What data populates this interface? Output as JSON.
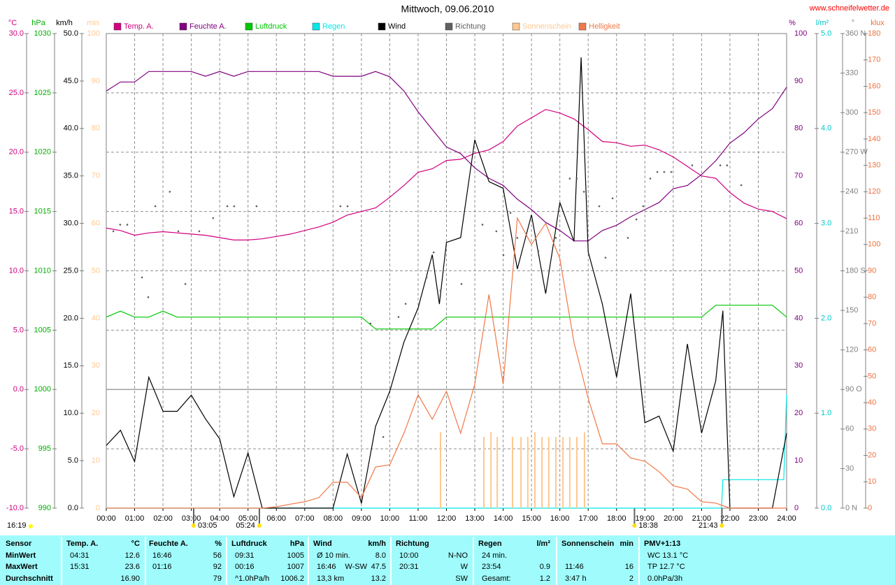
{
  "chart_data": {
    "type": "line",
    "title": "Mittwoch, 09.06.2010",
    "watermark": "www.schneifelwetter.de",
    "xlim": [
      0,
      24
    ],
    "xticks": [
      {
        "value": 0,
        "label": "00:00"
      },
      {
        "value": 1,
        "label": "01:00"
      },
      {
        "value": 2,
        "label": "02:00"
      },
      {
        "value": 3,
        "label": "03:00"
      },
      {
        "value": 4,
        "label": "04:00"
      },
      {
        "value": 5,
        "label": "05:00"
      },
      {
        "value": 6,
        "label": "06:00"
      },
      {
        "value": 7,
        "label": "07:00"
      },
      {
        "value": 8,
        "label": "08:00"
      },
      {
        "value": 9,
        "label": "09:00"
      },
      {
        "value": 10,
        "label": "10:00"
      },
      {
        "value": 11,
        "label": "11:00"
      },
      {
        "value": 12,
        "label": "12:00"
      },
      {
        "value": 13,
        "label": "13:00"
      },
      {
        "value": 14,
        "label": "14:00"
      },
      {
        "value": 15,
        "label": "15:00"
      },
      {
        "value": 16,
        "label": "16:00"
      },
      {
        "value": 17,
        "label": "17:00"
      },
      {
        "value": 18,
        "label": "18:00"
      },
      {
        "value": 19,
        "label": "19:00"
      },
      {
        "value": 20,
        "label": "20:00"
      },
      {
        "value": 21,
        "label": "21:00"
      },
      {
        "value": 22,
        "label": "22:00"
      },
      {
        "value": 23,
        "label": "23:00"
      },
      {
        "value": 24,
        "label": "24:00"
      }
    ],
    "grid": true,
    "y_axes": [
      {
        "unit": "°C",
        "color": "#d0007f",
        "lim": [
          -10,
          30
        ],
        "ticks": [
          {
            "value": -10,
            "label": "-10.0"
          },
          {
            "value": -5,
            "label": "-5.0"
          },
          {
            "value": 0,
            "label": "0.0"
          },
          {
            "value": 5,
            "label": "5.0"
          },
          {
            "value": 10,
            "label": "10.0"
          },
          {
            "value": 15,
            "label": "15.0"
          },
          {
            "value": 20,
            "label": "20.0"
          },
          {
            "value": 25,
            "label": "25.0"
          },
          {
            "value": 30,
            "label": "30.0"
          }
        ]
      },
      {
        "unit": "hPa",
        "color": "#00b000",
        "lim": [
          990,
          1030
        ],
        "ticks": [
          990,
          995,
          1000,
          1005,
          1010,
          1015,
          1020,
          1025,
          1030
        ]
      },
      {
        "unit": "km/h",
        "color": "#000000",
        "lim": [
          0,
          50
        ],
        "ticks": [
          {
            "value": 0,
            "label": "0.0"
          },
          {
            "value": 5,
            "label": "5.0"
          },
          {
            "value": 10,
            "label": "10.0"
          },
          {
            "value": 15,
            "label": "15.0"
          },
          {
            "value": 20,
            "label": "20.0"
          },
          {
            "value": 25,
            "label": "25.0"
          },
          {
            "value": 30,
            "label": "30.0"
          },
          {
            "value": 35,
            "label": "35.0"
          },
          {
            "value": 40,
            "label": "40.0"
          },
          {
            "value": 45,
            "label": "45.0"
          },
          {
            "value": 50,
            "label": "50.0"
          }
        ]
      },
      {
        "unit": "min",
        "color": "#ffc890",
        "lim": [
          0,
          100
        ],
        "ticks": [
          0,
          10,
          20,
          30,
          40,
          50,
          60,
          70,
          80,
          90,
          100
        ]
      },
      {
        "unit": "%",
        "color": "#800080",
        "lim": [
          0,
          100
        ],
        "ticks": [
          0,
          10,
          20,
          30,
          40,
          50,
          60,
          70,
          80,
          90,
          100
        ]
      },
      {
        "unit": "l/m²",
        "color": "#00c8c8",
        "lim": [
          0,
          5
        ],
        "ticks": [
          {
            "value": 0,
            "label": "0.0"
          },
          {
            "value": 1,
            "label": "1.0"
          },
          {
            "value": 2,
            "label": "2.0"
          },
          {
            "value": 3,
            "label": "3.0"
          },
          {
            "value": 4,
            "label": "4.0"
          },
          {
            "value": 5,
            "label": "5.0"
          }
        ]
      },
      {
        "unit": "°",
        "color": "#808080",
        "lim": [
          0,
          360
        ],
        "ticks": [
          {
            "value": 0,
            "label": "0 N"
          },
          30,
          60,
          {
            "value": 90,
            "label": "90 O"
          },
          120,
          150,
          {
            "value": 180,
            "label": "180 S"
          },
          210,
          240,
          {
            "value": 270,
            "label": "270 W"
          },
          300,
          330,
          {
            "value": 360,
            "label": "360 N"
          }
        ]
      },
      {
        "unit": "klux",
        "color": "#f07040",
        "lim": [
          0,
          180
        ],
        "ticks": [
          0,
          10,
          20,
          30,
          40,
          50,
          60,
          70,
          80,
          90,
          100,
          110,
          120,
          130,
          140,
          150,
          160,
          170,
          180
        ]
      }
    ],
    "x": [
      0,
      0.5,
      1,
      1.5,
      2,
      2.5,
      3,
      3.5,
      4,
      4.5,
      5,
      5.5,
      6,
      6.5,
      7,
      7.5,
      8,
      8.5,
      9,
      9.5,
      10,
      10.5,
      11,
      11.5,
      12,
      12.5,
      13,
      13.5,
      14,
      14.5,
      15,
      15.5,
      16,
      16.5,
      17,
      17.5,
      18,
      18.5,
      19,
      19.5,
      20,
      20.5,
      21,
      21.5,
      22,
      22.5,
      23,
      23.5,
      24
    ],
    "series": [
      {
        "name": "Temp. A.",
        "color": "#d0007f",
        "axis": 0,
        "values": [
          13.6,
          13.4,
          13.0,
          13.2,
          13.3,
          13.2,
          13.1,
          13.0,
          12.8,
          12.6,
          12.6,
          12.7,
          12.9,
          13.1,
          13.4,
          13.7,
          14.1,
          14.7,
          15.0,
          15.3,
          16.2,
          17.2,
          18.3,
          18.6,
          19.3,
          19.4,
          19.9,
          20.2,
          20.9,
          22.2,
          22.9,
          23.6,
          23.3,
          22.8,
          21.9,
          20.9,
          20.8,
          20.5,
          20.6,
          20.2,
          19.6,
          18.8,
          18.0,
          17.8,
          16.6,
          15.7,
          15.2,
          15.0,
          14.4
        ]
      },
      {
        "name": "Feuchte A.",
        "color": "#800080",
        "axis": 4,
        "values": [
          87.9,
          89.8,
          89.8,
          92,
          92,
          92,
          92,
          91,
          92,
          91,
          92,
          92,
          92,
          92,
          92,
          92,
          91,
          91,
          91,
          92,
          90.9,
          87.9,
          83.5,
          79.8,
          76.1,
          74.7,
          71.7,
          69.5,
          68.0,
          65.1,
          62.9,
          60.2,
          58.5,
          56.3,
          56.3,
          58.5,
          59.6,
          61.4,
          62.9,
          64.4,
          67.3,
          68.0,
          70.3,
          73.2,
          76.9,
          79.1,
          82.0,
          84.2,
          88.7
        ]
      },
      {
        "name": "Luftdruck",
        "color": "#00c800",
        "axis": 1,
        "values": [
          1006.1,
          1006.6,
          1006.1,
          1006.1,
          1006.6,
          1006.1,
          1006.1,
          1006.1,
          1006.1,
          1006.1,
          1006.1,
          1006.1,
          1006.1,
          1006.1,
          1006.1,
          1006.1,
          1006.1,
          1006.1,
          1006.1,
          1005.1,
          1005.1,
          1005.1,
          1005.1,
          1005.1,
          1006.1,
          1006.1,
          1006.1,
          1006.1,
          1006.1,
          1006.1,
          1006.1,
          1006.1,
          1006.1,
          1006.1,
          1006.1,
          1006.1,
          1006.1,
          1006.1,
          1006.1,
          1006.1,
          1006.1,
          1006.1,
          1006.1,
          1007.1,
          1007.1,
          1007.1,
          1007.1,
          1007.1,
          1006.1
        ]
      },
      {
        "name": "Regen",
        "color": "#00e8e8",
        "axis": 5,
        "x": [
          0,
          21.7,
          21.75,
          23.9,
          24
        ],
        "values": [
          0,
          0,
          0.3,
          0.3,
          1.2
        ]
      },
      {
        "name": "Wind",
        "color": "#000000",
        "axis": 2,
        "x": [
          0,
          0.5,
          1,
          1.5,
          2,
          2.5,
          3,
          3.5,
          4,
          4.5,
          5,
          5.5,
          6,
          8,
          8.5,
          9,
          9.5,
          10,
          10.5,
          11,
          11.5,
          11.75,
          12,
          12.5,
          13,
          13.5,
          14,
          14.5,
          15,
          15.5,
          16,
          16.5,
          16.75,
          17,
          17.5,
          18,
          18.5,
          19,
          19.5,
          20,
          20.5,
          21,
          21.5,
          21.75,
          22,
          23.5,
          24
        ],
        "values": [
          6.6,
          8.2,
          4.9,
          13.8,
          10.2,
          10.2,
          11.9,
          9.4,
          7.3,
          1.2,
          5.8,
          0,
          0,
          0,
          5.7,
          0.5,
          8.6,
          12.3,
          17.5,
          21.1,
          26.7,
          21.5,
          28.0,
          28.5,
          38.8,
          34.4,
          33.7,
          25.2,
          30.9,
          22.6,
          32.2,
          28.1,
          47.5,
          27.0,
          21.5,
          13.8,
          22.6,
          9.0,
          9.7,
          6.0,
          17.3,
          7.9,
          13.4,
          20.8,
          0,
          0,
          7.9
        ]
      },
      {
        "name": "Richtung",
        "color": "#606060",
        "axis": 6,
        "mark": "dots",
        "x": [
          0.25,
          0.49,
          0.74,
          1.26,
          1.48,
          1.73,
          2.24,
          2.54,
          2.79,
          3.28,
          3.77,
          4.27,
          4.51,
          5.3,
          8.26,
          8.51,
          9.32,
          9.77,
          10.31,
          10.56,
          11.3,
          11.55,
          11.79,
          12.53,
          13.27,
          13.76,
          14.01,
          14.26,
          14.5,
          15.24,
          15.86,
          16.35,
          16.6,
          16.85,
          17.39,
          17.61,
          17.86,
          18.4,
          18.7,
          18.94,
          19.19,
          19.44,
          19.68,
          19.93,
          20.67,
          21.66,
          21.9,
          22.4
        ],
        "values": [
          210,
          215,
          215,
          175,
          160,
          229,
          240,
          210,
          170,
          210,
          220,
          229,
          229,
          229,
          229,
          229,
          140,
          54,
          145,
          155,
          175,
          194,
          165,
          170,
          215,
          210,
          192,
          224,
          205,
          195,
          205,
          250,
          250,
          240,
          229,
          190,
          235,
          205,
          219,
          229,
          250,
          255,
          255,
          255,
          260,
          260,
          260,
          245
        ]
      },
      {
        "name": "Sonnenschein",
        "color": "#ffc890",
        "axis": 3,
        "mark": "bars",
        "x": [
          11.79,
          13.32,
          13.57,
          13.79,
          14.33,
          14.63,
          14.87,
          15.12,
          15.37,
          15.61,
          15.86,
          16.11,
          16.35,
          16.6,
          16.87
        ],
        "values": [
          16,
          15,
          16,
          15,
          15,
          15,
          15,
          16,
          15,
          15,
          15,
          15,
          15,
          15,
          16
        ]
      },
      {
        "name": "Helligkeit",
        "color": "#f07848",
        "axis": 7,
        "values": [
          0,
          0,
          0,
          0,
          0,
          0,
          0,
          0,
          0,
          0,
          0,
          0,
          0.5,
          1.5,
          2.4,
          4,
          9.8,
          9.8,
          4,
          15.6,
          16.4,
          28.4,
          43,
          33.7,
          44.3,
          28.4,
          47,
          81,
          47,
          110,
          100,
          108,
          94.6,
          62.8,
          41.6,
          24.4,
          24.4,
          19,
          17.8,
          13.8,
          8.5,
          7.2,
          2.4,
          1.9,
          0,
          0,
          0,
          0,
          0
        ]
      }
    ],
    "corner_note": "16:19",
    "annotations": [
      {
        "text": "03:05",
        "x": 3.083
      },
      {
        "text": "05:24",
        "x": 5.4
      },
      {
        "text": "18:38",
        "x": 18.633
      },
      {
        "text": "21:43",
        "x": 21.717
      }
    ]
  },
  "stats": {
    "sections": [
      {
        "title": "Sensor",
        "rows": [
          {
            "time": "MinWert"
          },
          {
            "time": "MaxWert"
          },
          {
            "time": "Durchschnitt"
          }
        ]
      },
      {
        "title": "Temp. A.",
        "unit": "°C",
        "rows": [
          {
            "time": "04:31",
            "value": "12.6"
          },
          {
            "time": "15:31",
            "value": "23.6"
          },
          {
            "value": "16.90"
          }
        ]
      },
      {
        "title": "Feuchte A.",
        "unit": "%",
        "rows": [
          {
            "time": "16:46",
            "value": "56"
          },
          {
            "time": "01:16",
            "value": "92"
          },
          {
            "value": "79"
          }
        ]
      },
      {
        "title": "Luftdruck",
        "unit": "hPa",
        "rows": [
          {
            "time": "09:31",
            "value": "1005"
          },
          {
            "time": "00:16",
            "value": "1007"
          },
          {
            "time": "^1.0hPa/h",
            "value": "1006.2"
          }
        ]
      },
      {
        "title": "Wind",
        "unit": "km/h",
        "rows": [
          {
            "time": "Ø 10 min.",
            "value": "8.0"
          },
          {
            "time": "16:46",
            "dir": "W-SW",
            "value": "47.5"
          },
          {
            "time": "13,3 km",
            "value": "13.2"
          }
        ]
      },
      {
        "title": "Richtung",
        "rows": [
          {
            "time": "10:00",
            "value": "N-NO"
          },
          {
            "time": "20:31",
            "value": "W"
          },
          {
            "value": "SW"
          }
        ]
      },
      {
        "title": "Regen",
        "unit": "l/m²",
        "rows": [
          {
            "time": "24 min."
          },
          {
            "time": "23:54",
            "value": "0.9"
          },
          {
            "time": "Gesamt:",
            "value": "1.2"
          }
        ]
      },
      {
        "title": "Sonnenschein",
        "unit": "min",
        "rows": [
          null,
          {
            "time": "11:46",
            "value": "16"
          },
          {
            "time": "3:47 h",
            "value": "2"
          }
        ]
      },
      {
        "title": "PMV+1:13",
        "rows": [
          {
            "time": "WC 13.1 °C"
          },
          {
            "time": "TP 12.7 °C"
          },
          {
            "time": "0.0hPa/3h"
          }
        ]
      }
    ]
  }
}
